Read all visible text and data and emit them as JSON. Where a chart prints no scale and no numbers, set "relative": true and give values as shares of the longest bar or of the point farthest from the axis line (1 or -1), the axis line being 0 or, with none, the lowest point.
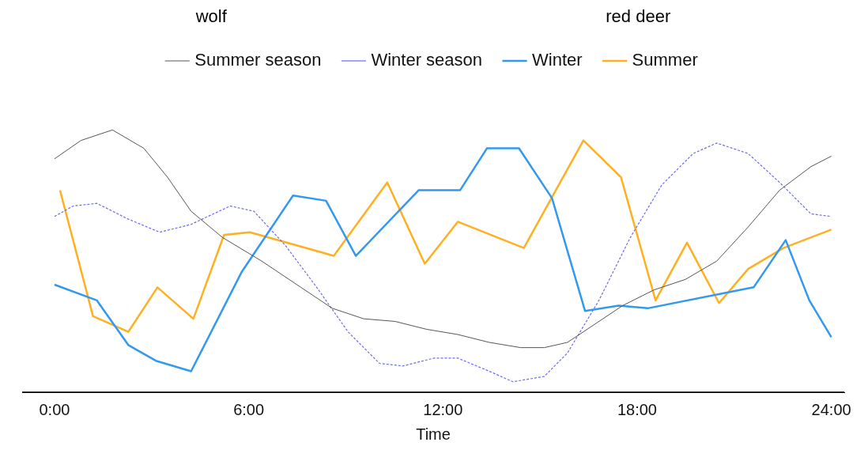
{
  "chart_data": {
    "type": "line",
    "relative": true,
    "xlabel": "Time",
    "annotations": [
      "wolf",
      "red deer"
    ],
    "legend": "top",
    "xlim": [
      -1,
      24.4
    ],
    "xticks": [
      {
        "value": 0,
        "label": "0:00"
      },
      {
        "value": 6,
        "label": "6:00"
      },
      {
        "value": 12,
        "label": "12:00"
      },
      {
        "value": 18,
        "label": "18:00"
      },
      {
        "value": 24,
        "label": "24:00"
      }
    ],
    "grid": false,
    "marker": "none",
    "ref_lines": [
      {
        "axis": "y",
        "value": 0,
        "label": null,
        "color": "#000000"
      }
    ],
    "series": [
      {
        "name": "Summer season",
        "color": "#555555",
        "line_style": "solid",
        "x": [
          0,
          0.82,
          1.79,
          2.76,
          3.49,
          4.22,
          5.19,
          6.4,
          7.61,
          8.58,
          9.55,
          10.52,
          11.49,
          12.46,
          13.43,
          14.4,
          15.13,
          15.85,
          16.58,
          17.55,
          18.52,
          19.49,
          20.46,
          21.43,
          22.4,
          23.37,
          24
        ],
        "values": [
          0.89,
          0.96,
          1,
          0.93,
          0.82,
          0.69,
          0.59,
          0.5,
          0.4,
          0.32,
          0.28,
          0.27,
          0.24,
          0.22,
          0.19,
          0.17,
          0.17,
          0.19,
          0.25,
          0.33,
          0.39,
          0.43,
          0.5,
          0.63,
          0.77,
          0.86,
          0.9
        ]
      },
      {
        "name": "Winter season",
        "color": "#6a6af0",
        "line_style": "dashed",
        "x": [
          0,
          0.58,
          1.31,
          2.28,
          3.25,
          4.22,
          5.43,
          6.16,
          7.13,
          8.1,
          9.07,
          10.04,
          10.76,
          11.73,
          12.46,
          13.43,
          14.16,
          15.13,
          15.85,
          16.82,
          17.79,
          18.76,
          19.73,
          20.46,
          21.43,
          22.4,
          23.37,
          24
        ],
        "values": [
          0.67,
          0.71,
          0.72,
          0.66,
          0.61,
          0.64,
          0.71,
          0.69,
          0.56,
          0.4,
          0.23,
          0.11,
          0.1,
          0.13,
          0.13,
          0.08,
          0.04,
          0.06,
          0.15,
          0.35,
          0.59,
          0.79,
          0.91,
          0.95,
          0.91,
          0.8,
          0.68,
          0.67
        ]
      },
      {
        "name": "Winter",
        "color": "#3399ee",
        "line_style": "solid",
        "x": [
          0,
          1.31,
          2.28,
          3.13,
          4.22,
          5.79,
          7.37,
          8.39,
          9.31,
          11.25,
          12.53,
          13.36,
          14.35,
          15.37,
          16.39,
          17.43,
          18.33,
          21.6,
          22.59,
          23.32,
          24
        ],
        "values": [
          0.41,
          0.35,
          0.18,
          0.12,
          0.08,
          0.46,
          0.75,
          0.73,
          0.52,
          0.77,
          0.77,
          0.93,
          0.93,
          0.74,
          0.31,
          0.33,
          0.32,
          0.4,
          0.58,
          0.35,
          0.21
        ]
      },
      {
        "name": "Summer",
        "color": "#ffb020",
        "line_style": "solid",
        "x": [
          0.17,
          1.19,
          2.28,
          3.18,
          4.29,
          5.24,
          6.04,
          8.63,
          10.28,
          11.44,
          12.46,
          14.5,
          16.34,
          17.5,
          18.57,
          19.54,
          20.53,
          21.43,
          22.52,
          24
        ],
        "values": [
          0.77,
          0.29,
          0.23,
          0.4,
          0.28,
          0.6,
          0.61,
          0.52,
          0.8,
          0.49,
          0.65,
          0.55,
          0.96,
          0.82,
          0.35,
          0.57,
          0.34,
          0.47,
          0.55,
          0.62
        ]
      }
    ]
  }
}
